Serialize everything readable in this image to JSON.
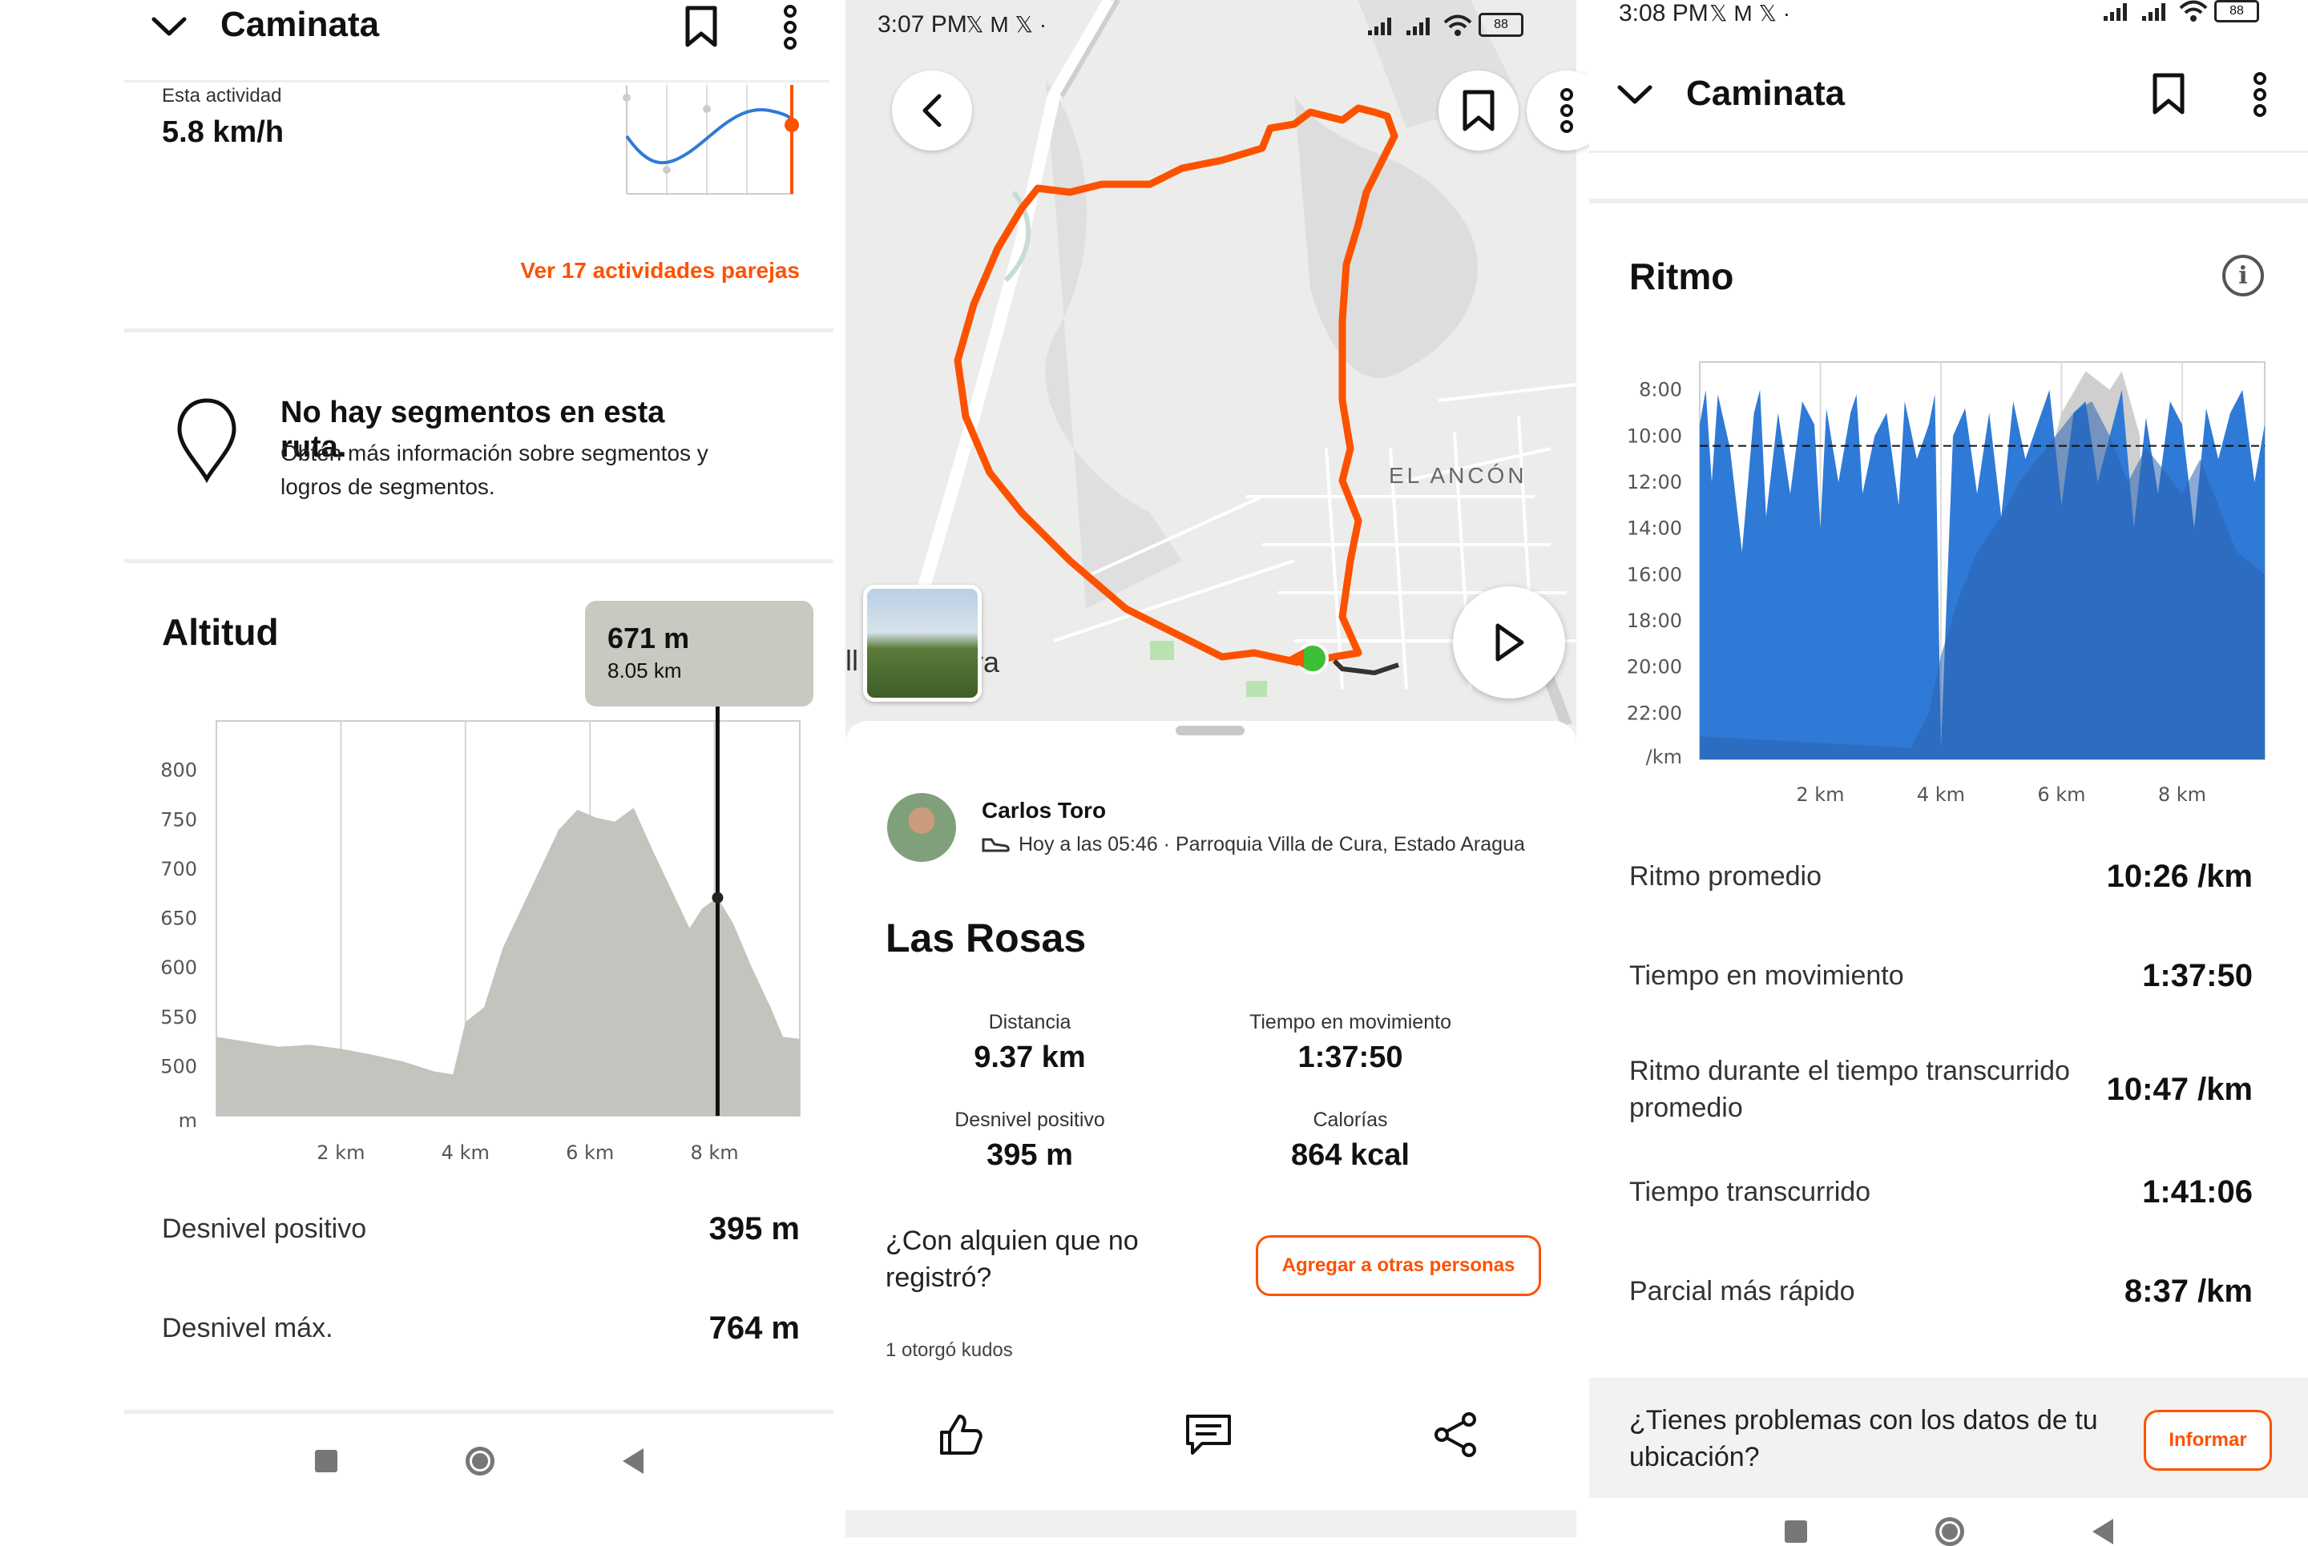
{
  "panel1": {
    "header": {
      "title": "Caminata"
    },
    "activity": {
      "label": "Esta actividad",
      "value": "5.8 km/h",
      "link": "Ver 17 actividades parejas"
    },
    "segments": {
      "title": "No hay segmentos en esta ruta.",
      "desc_line1": "Obtén más información sobre segmentos y",
      "desc_line2": "logros de segmentos."
    },
    "altitude": {
      "title": "Altitud",
      "tooltip_value": "671 m",
      "tooltip_dist": "8.05 km",
      "chart_data": {
        "type": "area",
        "x": [
          0.0,
          0.5,
          1.0,
          1.5,
          2.0,
          2.5,
          3.0,
          3.5,
          3.8,
          4.0,
          4.3,
          4.6,
          4.9,
          5.2,
          5.5,
          5.8,
          6.1,
          6.4,
          6.7,
          7.0,
          7.3,
          7.6,
          7.8,
          8.05,
          8.3,
          8.6,
          8.9,
          9.1,
          9.37
        ],
        "y": [
          530,
          525,
          520,
          522,
          518,
          512,
          505,
          495,
          492,
          545,
          560,
          620,
          660,
          700,
          740,
          760,
          752,
          748,
          762,
          720,
          680,
          640,
          660,
          671,
          645,
          600,
          560,
          530,
          528
        ],
        "ylabel": "m",
        "yticks": [
          "800",
          "750",
          "700",
          "650",
          "600",
          "550",
          "500"
        ],
        "xticks": [
          "2 km",
          "4 km",
          "6 km",
          "8 km"
        ],
        "ylim": [
          450,
          850
        ],
        "xlim": [
          0,
          9.37
        ],
        "marker_x": 8.05,
        "marker_y": 671
      },
      "stats": [
        {
          "label": "Desnivel positivo",
          "value": "395 m"
        },
        {
          "label": "Desnivel máx.",
          "value": "764 m"
        }
      ]
    }
  },
  "panel2": {
    "status": {
      "time": "3:07 PM",
      "icons": "𝕏 M 𝕏 ·",
      "battery": "88"
    },
    "map": {
      "label_1": "EL ANCÓN",
      "label_2": "ll",
      "label_3": "ra"
    },
    "athlete": {
      "name": "Carlos Toro",
      "meta": "Hoy a las 05:46 · Parroquia Villa de Cura, Estado Aragua"
    },
    "activity_title": "Las Rosas",
    "stats": [
      {
        "label": "Distancia",
        "value": "9.37 km"
      },
      {
        "label": "Tiempo en movimiento",
        "value": "1:37:50"
      },
      {
        "label": "Desnivel positivo",
        "value": "395 m"
      },
      {
        "label": "Calorías",
        "value": "864 kcal"
      }
    ],
    "tag": {
      "question_line1": "¿Con alquien que no",
      "question_line2": "registró?",
      "button": "Agregar a otras personas"
    },
    "kudos": "1 otorgó kudos"
  },
  "panel3": {
    "status": {
      "time": "3:08 PM",
      "icons": "𝕏 M 𝕏 ·",
      "battery": "88"
    },
    "header": {
      "title": "Caminata"
    },
    "pace": {
      "title": "Ritmo",
      "chart_data": {
        "type": "area",
        "ylabel": "/km",
        "yticks": [
          "8:00",
          "10:00",
          "12:00",
          "14:00",
          "16:00",
          "18:00",
          "20:00",
          "22:00"
        ],
        "xticks": [
          "2 km",
          "4 km",
          "6 km",
          "8 km"
        ],
        "xlim": [
          0,
          9.37
        ],
        "ylim_minutes": [
          6.8,
          24
        ],
        "average_pace_minutes": 10.43,
        "series": [
          {
            "x": [
              0.0,
              0.1,
              0.2,
              0.3,
              0.5,
              0.7,
              0.9,
              1.0,
              1.1,
              1.3,
              1.5,
              1.7,
              1.9,
              2.0,
              2.1,
              2.3,
              2.5,
              2.6,
              2.7,
              2.9,
              3.1,
              3.3,
              3.4,
              3.6,
              3.8,
              3.9,
              4.0,
              4.2,
              4.4,
              4.6,
              4.8,
              5.0,
              5.2,
              5.4,
              5.6,
              5.8,
              6.0,
              6.2,
              6.4,
              6.6,
              6.8,
              7.0,
              7.2,
              7.4,
              7.6,
              7.8,
              8.0,
              8.2,
              8.4,
              8.6,
              8.8,
              9.0,
              9.2,
              9.37
            ],
            "y": [
              9.5,
              8.0,
              12.0,
              8.2,
              10.5,
              15.0,
              9.0,
              8.0,
              13.5,
              9.0,
              12.5,
              8.5,
              9.5,
              14.0,
              8.8,
              12.0,
              9.0,
              8.2,
              12.5,
              10.0,
              9.0,
              13.0,
              8.5,
              11.0,
              9.5,
              8.2,
              23.5,
              10.0,
              8.8,
              12.5,
              9.0,
              13.5,
              8.5,
              11.0,
              9.5,
              8.0,
              13.0,
              9.0,
              8.5,
              12.0,
              10.0,
              8.0,
              14.0,
              9.2,
              12.5,
              8.5,
              9.5,
              14.0,
              8.8,
              11.0,
              9.0,
              8.0,
              12.0,
              9.5
            ]
          },
          {
            "x": [
              0.0,
              3.5,
              3.8,
              4.0,
              4.3,
              4.6,
              5.0,
              5.3,
              5.6,
              5.9,
              6.2,
              6.5,
              6.8,
              7.1,
              7.4,
              7.7,
              8.0,
              8.3,
              8.6,
              8.9,
              9.37
            ],
            "y": [
              23.0,
              23.5,
              22.0,
              19.5,
              17.0,
              15.0,
              13.5,
              12.0,
              11.0,
              10.0,
              9.0,
              8.5,
              10.0,
              12.0,
              10.5,
              11.5,
              12.5,
              11.0,
              13.0,
              15.0,
              16.0
            ]
          }
        ]
      }
    },
    "stats": [
      {
        "label": "Ritmo promedio",
        "value": "10:26 /km"
      },
      {
        "label": "Tiempo en movimiento",
        "value": "1:37:50"
      },
      {
        "label_line1": "Ritmo durante el tiempo transcurrido",
        "label_line2": "promedio",
        "value": "10:47 /km"
      },
      {
        "label": "Tiempo transcurrido",
        "value": "1:41:06"
      },
      {
        "label": "Parcial más rápido",
        "value": "8:37 /km"
      }
    ],
    "report": {
      "line1": "¿Tienes problemas con los datos de tu",
      "line2": "ubicación?",
      "button": "Informar"
    }
  },
  "colors": {
    "accent": "#fc5200",
    "pace_blue": "#2f7ad6",
    "pace_dark": "#2a63b0",
    "elev_gray": "#c4c3bd"
  }
}
